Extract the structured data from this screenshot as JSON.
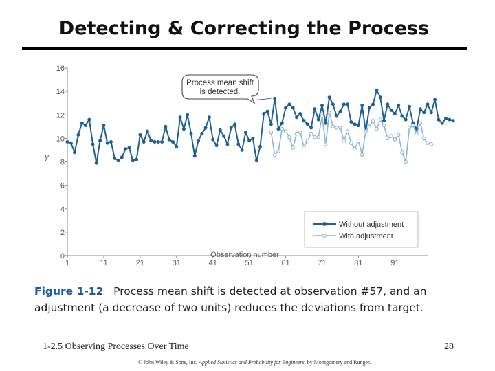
{
  "slide": {
    "title": "Detecting & Correcting the  Process",
    "caption_label": "Figure 1-12",
    "caption_text": "Process mean shift is detected at observation #57, and an adjustment (a decrease of two units) reduces the deviations from target.",
    "footer_left": "1-2.5 Observing Processes Over Time",
    "footer_right": "28",
    "copyright_prefix": "© John Wiley & Sons, Inc.",
    "copyright_book": "Applied Statistics and Probability for Engineers",
    "copyright_suffix": ", by Montgomery and Runger."
  },
  "chart_data": {
    "type": "line",
    "xlabel": "Observation number",
    "ylabel": "y",
    "xlim": [
      1,
      100
    ],
    "ylim": [
      0,
      16
    ],
    "xticks": [
      1,
      11,
      21,
      31,
      41,
      51,
      61,
      71,
      81,
      91
    ],
    "yticks": [
      0,
      2,
      4,
      6,
      8,
      10,
      12,
      14,
      16
    ],
    "grid": false,
    "legend_position": "bottom-right",
    "annotation": {
      "text": [
        "Process mean shift",
        "is detected."
      ],
      "x": 57,
      "y": 13.4
    },
    "colors": {
      "without": "#1f5f94",
      "with": "#8fb3d6",
      "axis": "#888888",
      "tick_label": "#555555"
    },
    "series": [
      {
        "name": "Without adjustment",
        "x_start": 1,
        "values": [
          9.7,
          9.6,
          8.8,
          10.3,
          11.3,
          11.1,
          11.6,
          9.5,
          7.9,
          9.8,
          11.1,
          9.6,
          9.7,
          8.3,
          8.1,
          8.4,
          9.1,
          9.2,
          8.1,
          8.2,
          10.3,
          9.7,
          10.6,
          9.8,
          9.7,
          9.7,
          9.7,
          11.0,
          9.9,
          9.7,
          9.3,
          11.8,
          10.8,
          12.0,
          10.4,
          8.5,
          9.8,
          10.4,
          10.9,
          11.8,
          9.9,
          9.4,
          10.7,
          10.2,
          9.5,
          10.9,
          11.2,
          9.5,
          9.0,
          10.5,
          9.8,
          10.0,
          8.1,
          9.3,
          12.1,
          12.3,
          11.2,
          13.4,
          10.8,
          11.3,
          12.6,
          12.9,
          12.6,
          11.8,
          12.1,
          11.5,
          11.2,
          10.9,
          12.5,
          11.6,
          12.8,
          11.3,
          13.5,
          12.9,
          11.9,
          12.3,
          12.9,
          12.9,
          11.4,
          11.2,
          11.1,
          12.8,
          10.6,
          12.6,
          12.9,
          14.1,
          13.5,
          11.5,
          12.9,
          12.4,
          12.1,
          12.8,
          11.9,
          11.6,
          12.7,
          11.3,
          10.8,
          12.5,
          12.2,
          12.9,
          12.2,
          13.3,
          11.6,
          11.3,
          11.7,
          11.6,
          11.5
        ]
      },
      {
        "name": "With adjustment",
        "x_start": 57,
        "values": [
          10.5,
          8.6,
          8.9,
          10.8,
          10.6,
          10.1,
          9.2,
          10.4,
          10.5,
          9.3,
          9.8,
          10.4,
          10.1,
          10.1,
          11.9,
          9.5,
          12.2,
          11.0,
          10.9,
          10.9,
          9.8,
          10.6,
          9.6,
          9.1,
          9.8,
          8.6,
          10.6,
          11.0,
          11.5,
          10.8,
          11.6,
          11.1,
          10.0,
          10.2,
          9.9,
          10.3,
          8.8,
          8.0,
          10.9,
          11.1,
          10.4,
          11.3,
          10.0,
          9.6,
          9.5
        ]
      }
    ]
  }
}
